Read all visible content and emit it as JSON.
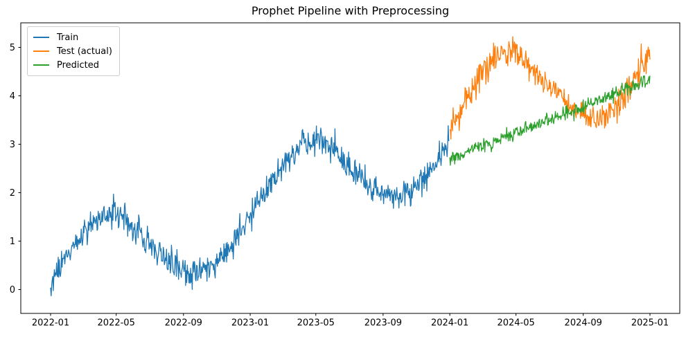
{
  "chart_data": {
    "type": "line",
    "title": "Prophet Pipeline with Preprocessing",
    "xlabel": "",
    "ylabel": "",
    "xlim": [
      "2022-01-01",
      "2025-01-01"
    ],
    "ylim": [
      -0.5,
      5.5
    ],
    "x_ticks": [
      "2022-01",
      "2022-05",
      "2022-09",
      "2023-01",
      "2023-05",
      "2023-09",
      "2024-01",
      "2024-05",
      "2024-09",
      "2025-01"
    ],
    "y_ticks": [
      0,
      1,
      2,
      3,
      4,
      5
    ],
    "grid": false,
    "legend_position": "upper left",
    "point_frequency": "daily",
    "note": "Noisy daily series; anchors give the monthly mean curve read from the plot, noise_std the visual scatter around it",
    "series": [
      {
        "name": "Train",
        "color": "#1f77b4",
        "start": "2022-01-01",
        "end": "2023-12-31",
        "noise_std": 0.15,
        "anchors": [
          [
            "2022-01",
            0.15
          ],
          [
            "2022-02",
            0.7
          ],
          [
            "2022-03",
            1.15
          ],
          [
            "2022-04",
            1.5
          ],
          [
            "2022-05",
            1.55
          ],
          [
            "2022-06",
            1.3
          ],
          [
            "2022-07",
            0.95
          ],
          [
            "2022-08",
            0.6
          ],
          [
            "2022-09",
            0.38
          ],
          [
            "2022-10",
            0.32
          ],
          [
            "2022-11",
            0.5
          ],
          [
            "2022-12",
            0.92
          ],
          [
            "2023-01",
            1.5
          ],
          [
            "2023-02",
            2.05
          ],
          [
            "2023-03",
            2.6
          ],
          [
            "2023-04",
            3.0
          ],
          [
            "2023-05",
            3.12
          ],
          [
            "2023-06",
            2.9
          ],
          [
            "2023-07",
            2.55
          ],
          [
            "2023-08",
            2.22
          ],
          [
            "2023-09",
            2.0
          ],
          [
            "2023-10",
            1.92
          ],
          [
            "2023-11",
            2.1
          ],
          [
            "2023-12",
            2.52
          ],
          [
            "2024-01",
            3.08
          ]
        ]
      },
      {
        "name": "Test (actual)",
        "color": "#ff7f0e",
        "start": "2024-01-01",
        "end": "2025-01-01",
        "noise_std": 0.15,
        "anchors": [
          [
            "2024-01",
            3.3
          ],
          [
            "2024-02",
            3.95
          ],
          [
            "2024-03",
            4.45
          ],
          [
            "2024-04",
            4.88
          ],
          [
            "2024-05",
            4.95
          ],
          [
            "2024-06",
            4.6
          ],
          [
            "2024-07",
            4.18
          ],
          [
            "2024-08",
            3.88
          ],
          [
            "2024-09",
            3.66
          ],
          [
            "2024-10",
            3.52
          ],
          [
            "2024-11",
            3.75
          ],
          [
            "2024-12",
            4.32
          ],
          [
            "2025-01",
            4.95
          ]
        ]
      },
      {
        "name": "Predicted",
        "color": "#2ca02c",
        "start": "2024-01-01",
        "end": "2025-01-01",
        "noise_std": 0.07,
        "anchors": [
          [
            "2024-01",
            2.68
          ],
          [
            "2024-02",
            2.83
          ],
          [
            "2024-03",
            2.97
          ],
          [
            "2024-04",
            3.1
          ],
          [
            "2024-05",
            3.24
          ],
          [
            "2024-06",
            3.37
          ],
          [
            "2024-07",
            3.51
          ],
          [
            "2024-08",
            3.64
          ],
          [
            "2024-09",
            3.78
          ],
          [
            "2024-10",
            3.92
          ],
          [
            "2024-11",
            4.06
          ],
          [
            "2024-12",
            4.2
          ],
          [
            "2025-01",
            4.35
          ]
        ]
      }
    ]
  }
}
